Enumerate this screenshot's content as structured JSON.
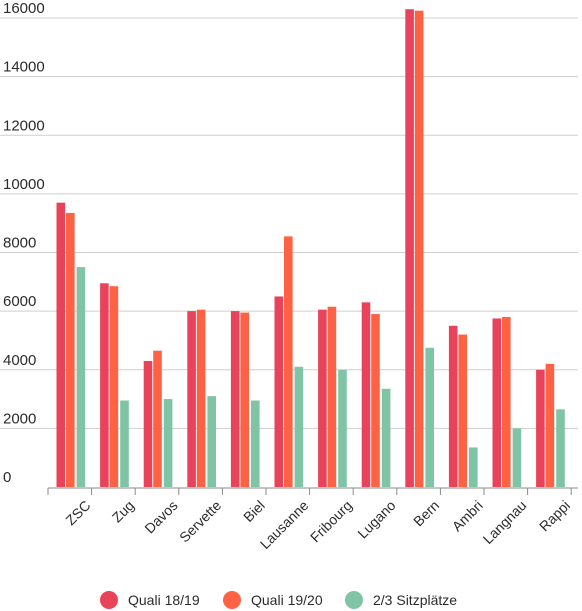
{
  "chart_data": {
    "type": "bar",
    "title": "",
    "xlabel": "",
    "ylabel": "",
    "ylim": [
      0,
      16500
    ],
    "yticks": [
      0,
      2000,
      4000,
      6000,
      8000,
      10000,
      12000,
      14000,
      16000
    ],
    "grid": true,
    "legend_position": "bottom",
    "categories": [
      "ZSC",
      "Zug",
      "Davos",
      "Servette",
      "Biel",
      "Lausanne",
      "Fribourg",
      "Lugano",
      "Bern",
      "Ambri",
      "Langnau",
      "Rappi"
    ],
    "series": [
      {
        "name": "Quali 18/19",
        "color": "#e8435a",
        "values": [
          9700,
          6950,
          4300,
          6000,
          6000,
          6500,
          6050,
          6300,
          16300,
          5500,
          5750,
          4000
        ]
      },
      {
        "name": "Quali 19/20",
        "color": "#fd6245",
        "values": [
          9350,
          6850,
          4650,
          6050,
          5950,
          8550,
          6150,
          5900,
          16250,
          5200,
          5800,
          4200
        ]
      },
      {
        "name": "2/3 Sitzplätze",
        "color": "#7fc4a4",
        "values": [
          7500,
          2950,
          3000,
          3100,
          2950,
          4100,
          4000,
          3350,
          4750,
          1350,
          2000,
          2650
        ]
      }
    ]
  }
}
